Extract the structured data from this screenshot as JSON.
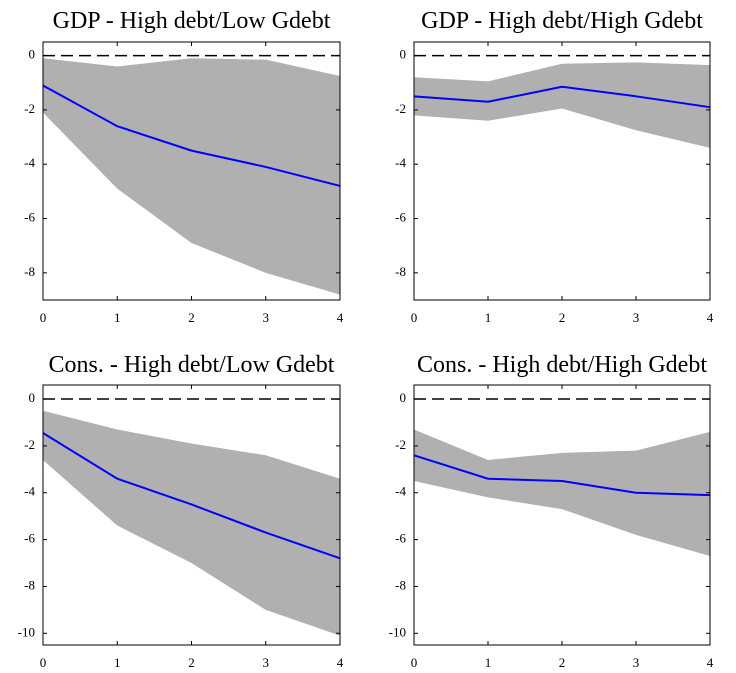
{
  "chart_data": [
    {
      "type": "line",
      "title": "GDP - High debt/Low Gdebt",
      "x": [
        0,
        1,
        2,
        3,
        4
      ],
      "xlim": [
        0,
        4
      ],
      "xticks": [
        0,
        1,
        2,
        3,
        4
      ],
      "ylim": [
        -9,
        0.5
      ],
      "yticks": [
        0,
        -2,
        -4,
        -6,
        -8
      ],
      "reference_line": 0,
      "series": [
        {
          "color": "#0000ff",
          "values": [
            -1.1,
            -2.6,
            -3.5,
            -4.1,
            -4.8
          ]
        }
      ],
      "band": {
        "color": "#b0b0b0",
        "lower": [
          -2.1,
          -4.9,
          -6.9,
          -8.0,
          -8.8
        ],
        "upper": [
          -0.1,
          -0.4,
          -0.1,
          -0.15,
          -0.75
        ]
      }
    },
    {
      "type": "line",
      "title": "GDP - High debt/High Gdebt",
      "x": [
        0,
        1,
        2,
        3,
        4
      ],
      "xlim": [
        0,
        4
      ],
      "xticks": [
        0,
        1,
        2,
        3,
        4
      ],
      "ylim": [
        -9,
        0.5
      ],
      "yticks": [
        0,
        -2,
        -4,
        -6,
        -8
      ],
      "reference_line": 0,
      "series": [
        {
          "color": "#0000ff",
          "values": [
            -1.5,
            -1.7,
            -1.15,
            -1.5,
            -1.9
          ]
        }
      ],
      "band": {
        "color": "#b0b0b0",
        "lower": [
          -2.2,
          -2.4,
          -1.95,
          -2.75,
          -3.4
        ],
        "upper": [
          -0.8,
          -0.95,
          -0.3,
          -0.25,
          -0.35
        ]
      }
    },
    {
      "type": "line",
      "title": "Cons. - High debt/Low Gdebt",
      "x": [
        0,
        1,
        2,
        3,
        4
      ],
      "xlim": [
        0,
        4
      ],
      "xticks": [
        0,
        1,
        2,
        3,
        4
      ],
      "ylim": [
        -10.5,
        0.6
      ],
      "yticks": [
        0,
        -2,
        -4,
        -6,
        -8,
        -10
      ],
      "reference_line": 0,
      "series": [
        {
          "color": "#0000ff",
          "values": [
            -1.45,
            -3.4,
            -4.5,
            -5.7,
            -6.8
          ]
        }
      ],
      "band": {
        "color": "#b0b0b0",
        "lower": [
          -2.6,
          -5.4,
          -7.0,
          -9.0,
          -10.1
        ],
        "upper": [
          -0.5,
          -1.3,
          -1.9,
          -2.4,
          -3.4
        ]
      }
    },
    {
      "type": "line",
      "title": "Cons. - High debt/High Gdebt",
      "x": [
        0,
        1,
        2,
        3,
        4
      ],
      "xlim": [
        0,
        4
      ],
      "xticks": [
        0,
        1,
        2,
        3,
        4
      ],
      "ylim": [
        -10.5,
        0.6
      ],
      "yticks": [
        0,
        -2,
        -4,
        -6,
        -8,
        -10
      ],
      "reference_line": 0,
      "series": [
        {
          "color": "#0000ff",
          "values": [
            -2.4,
            -3.4,
            -3.5,
            -4.0,
            -4.1
          ]
        }
      ],
      "band": {
        "color": "#b0b0b0",
        "lower": [
          -3.5,
          -4.2,
          -4.7,
          -5.8,
          -6.7
        ],
        "upper": [
          -1.3,
          -2.6,
          -2.3,
          -2.2,
          -1.4
        ]
      }
    }
  ]
}
